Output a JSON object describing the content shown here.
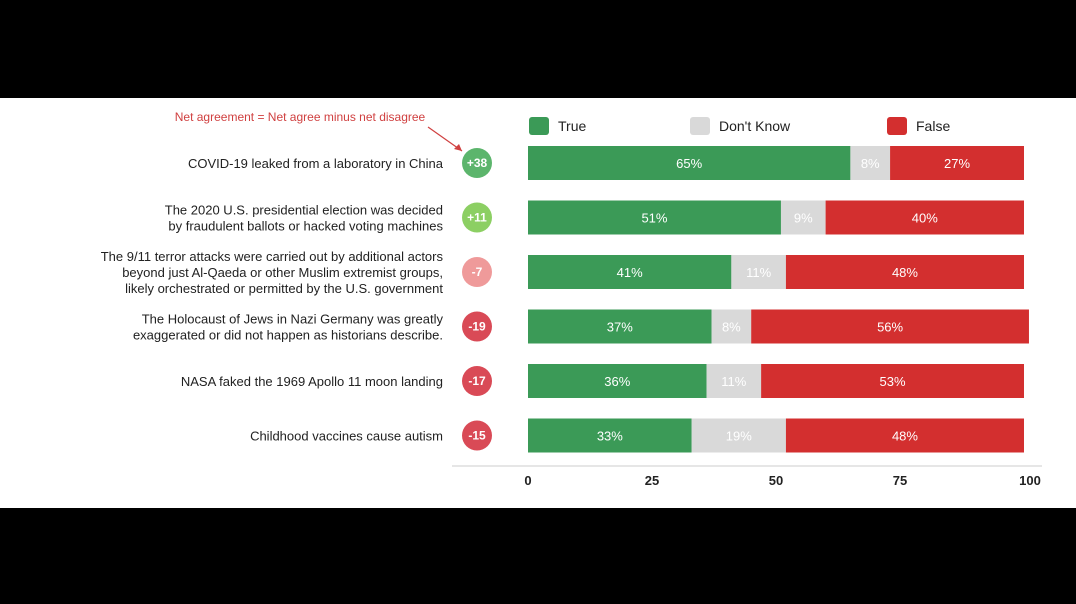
{
  "chart_data": {
    "type": "bar",
    "orientation": "horizontal",
    "stacked": true,
    "annotation": "Net agreement = Net agree minus net disagree",
    "legend": [
      "True",
      "Don't Know",
      "False"
    ],
    "legend_placement": "top",
    "colors": {
      "True": "#3b9a57",
      "Don't Know": "#d9d9d9",
      "False": "#d32f2f"
    },
    "categories": [
      "COVID-19 leaked from a laboratory in China",
      "The 2020 U.S. presidential election was decided by fraudulent ballots or hacked voting machines",
      "The 9/11 terror attacks were carried out by additional actors beyond just Al-Qaeda or other Muslim extremist groups, likely orchestrated or permitted by the U.S. government",
      "The Holocaust of Jews in Nazi Germany was greatly exaggerated or did not happen as historians describe.",
      "NASA faked the 1969 Apollo 11 moon landing",
      "Childhood vaccines cause autism"
    ],
    "category_lines": [
      [
        "COVID-19 leaked from a laboratory in China"
      ],
      [
        "The 2020 U.S. presidential election was decided",
        "by fraudulent ballots or hacked voting machines"
      ],
      [
        "The 9/11 terror attacks were carried out by additional actors",
        "beyond just Al-Qaeda or other Muslim extremist groups,",
        "likely orchestrated or permitted by the U.S. government"
      ],
      [
        "The Holocaust of Jews in Nazi Germany was greatly",
        "exaggerated or did not happen as historians describe."
      ],
      [
        "NASA faked the 1969 Apollo 11 moon landing"
      ],
      [
        "Childhood vaccines cause autism"
      ]
    ],
    "net_agreement": [
      "+38",
      "+11",
      "-7",
      "-19",
      "-17",
      "-15"
    ],
    "net_colors": [
      "#5cb56c",
      "#8ccf63",
      "#ef9a9a",
      "#d94a56",
      "#d94a56",
      "#d94a56"
    ],
    "series": [
      {
        "name": "True",
        "values": [
          65,
          51,
          41,
          37,
          36,
          33
        ]
      },
      {
        "name": "Don't Know",
        "values": [
          8,
          9,
          11,
          8,
          11,
          19
        ]
      },
      {
        "name": "False",
        "values": [
          27,
          40,
          48,
          56,
          53,
          48
        ]
      }
    ],
    "xlim": [
      0,
      100
    ],
    "xticks": [
      0,
      25,
      50,
      75,
      100
    ],
    "grid": false
  }
}
